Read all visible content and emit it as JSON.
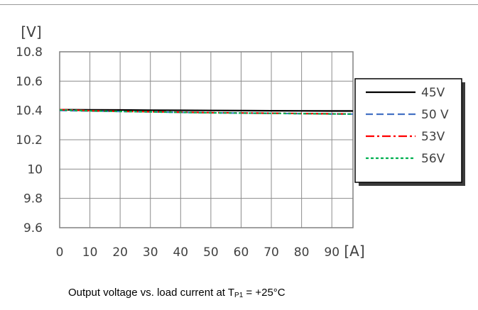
{
  "chart_data": {
    "type": "line",
    "title": "",
    "xlabel": "[A]",
    "ylabel": "[V]",
    "xlim": [
      0,
      97
    ],
    "ylim": [
      9.6,
      10.8
    ],
    "x_ticks": [
      "0",
      "10",
      "20",
      "30",
      "40",
      "50",
      "60",
      "70",
      "80",
      "90"
    ],
    "y_ticks": [
      "10.8",
      "10.6",
      "10.4",
      "10.2",
      "10",
      "9.8",
      "9.6"
    ],
    "grid": true,
    "legend_position": "right",
    "x": [
      0,
      10,
      20,
      30,
      40,
      50,
      60,
      70,
      80,
      90,
      97
    ],
    "series": [
      {
        "name": "45V",
        "color": "#000000",
        "dash": "solid",
        "values": [
          10.405,
          10.404,
          10.403,
          10.402,
          10.401,
          10.4,
          10.399,
          10.398,
          10.397,
          10.396,
          10.396
        ]
      },
      {
        "name": "50 V",
        "color": "#4472c4",
        "dash": "dash",
        "values": [
          10.4,
          10.396,
          10.393,
          10.39,
          10.387,
          10.384,
          10.382,
          10.38,
          10.378,
          10.376,
          10.375
        ]
      },
      {
        "name": "53V",
        "color": "#ff0000",
        "dash": "dashdot",
        "values": [
          10.405,
          10.398,
          10.394,
          10.391,
          10.388,
          10.385,
          10.383,
          10.381,
          10.379,
          10.377,
          10.376
        ]
      },
      {
        "name": "56V",
        "color": "#00b050",
        "dash": "dot",
        "values": [
          10.403,
          10.397,
          10.393,
          10.39,
          10.387,
          10.384,
          10.382,
          10.38,
          10.378,
          10.376,
          10.375
        ]
      }
    ]
  },
  "caption": {
    "prefix": "Output voltage vs. load current at T",
    "subscript": "P1",
    "suffix": " = +25°C"
  }
}
